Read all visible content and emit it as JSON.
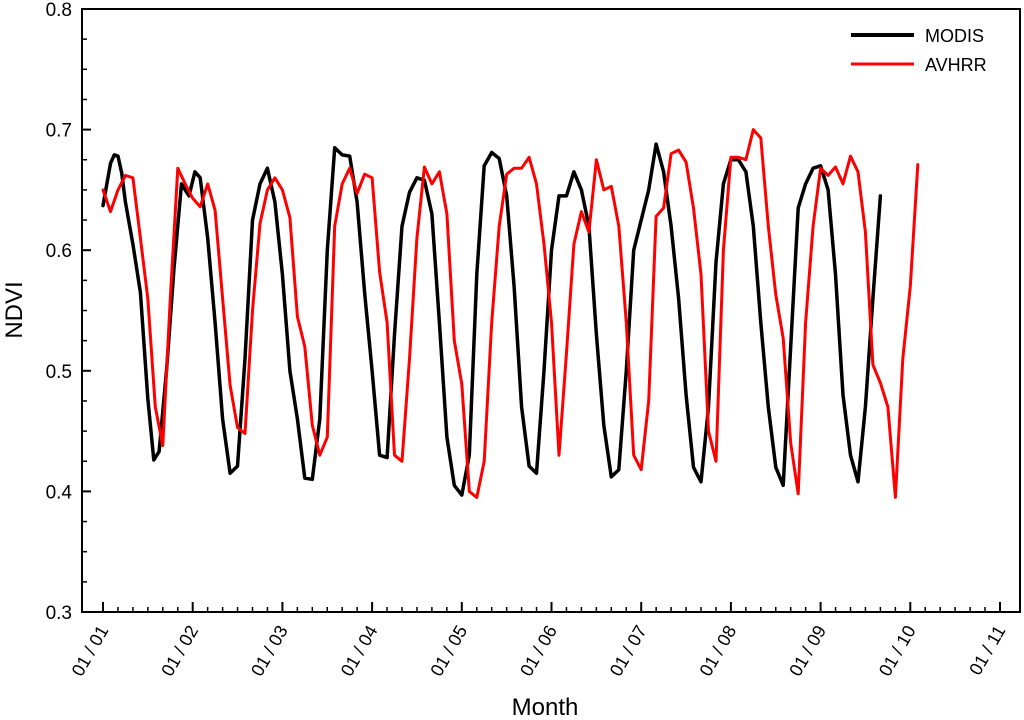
{
  "chart_data": {
    "type": "line",
    "xlabel": "Month",
    "ylabel": "NDVI",
    "ylim": [
      0.3,
      0.8
    ],
    "xlim": [
      0,
      120
    ],
    "y_ticks": [
      "0.3",
      "0.4",
      "0.5",
      "0.6",
      "0.7",
      "0.8"
    ],
    "x_ticks": [
      "01 / 01",
      "01 / 02",
      "01 / 03",
      "01 / 04",
      "01 / 05",
      "01 / 06",
      "01 / 07",
      "01 / 08",
      "01 / 09",
      "01 / 10",
      "01 / 11"
    ],
    "legend_position": "top-right",
    "grid": false,
    "series": [
      {
        "name": "MODIS",
        "color": "#000000",
        "points": [
          [
            0,
            0.637
          ],
          [
            1,
            0.672
          ],
          [
            1.5,
            0.679
          ],
          [
            2,
            0.678
          ],
          [
            2.5,
            0.664
          ],
          [
            3,
            0.64
          ],
          [
            4,
            0.605
          ],
          [
            5,
            0.565
          ],
          [
            6,
            0.477
          ],
          [
            6.8,
            0.426
          ],
          [
            7.5,
            0.433
          ],
          [
            8.5,
            0.5
          ],
          [
            9.5,
            0.585
          ],
          [
            10.5,
            0.655
          ],
          [
            11,
            0.65
          ],
          [
            11.5,
            0.645
          ],
          [
            12.3,
            0.665
          ],
          [
            13,
            0.66
          ],
          [
            14,
            0.61
          ],
          [
            15,
            0.54
          ],
          [
            16,
            0.46
          ],
          [
            17,
            0.415
          ],
          [
            18,
            0.421
          ],
          [
            19,
            0.51
          ],
          [
            20,
            0.625
          ],
          [
            21,
            0.655
          ],
          [
            22,
            0.668
          ],
          [
            23,
            0.64
          ],
          [
            24,
            0.58
          ],
          [
            25,
            0.5
          ],
          [
            26,
            0.46
          ],
          [
            27,
            0.411
          ],
          [
            28,
            0.41
          ],
          [
            29,
            0.46
          ],
          [
            30,
            0.6
          ],
          [
            31,
            0.685
          ],
          [
            32,
            0.679
          ],
          [
            33,
            0.678
          ],
          [
            34,
            0.64
          ],
          [
            35,
            0.565
          ],
          [
            36,
            0.5
          ],
          [
            37,
            0.43
          ],
          [
            38,
            0.428
          ],
          [
            39,
            0.53
          ],
          [
            40,
            0.62
          ],
          [
            41,
            0.648
          ],
          [
            42,
            0.66
          ],
          [
            43,
            0.658
          ],
          [
            44,
            0.63
          ],
          [
            45,
            0.54
          ],
          [
            46,
            0.445
          ],
          [
            47,
            0.405
          ],
          [
            48,
            0.397
          ],
          [
            49,
            0.43
          ],
          [
            50,
            0.58
          ],
          [
            51,
            0.67
          ],
          [
            52,
            0.681
          ],
          [
            53,
            0.676
          ],
          [
            54,
            0.645
          ],
          [
            55,
            0.57
          ],
          [
            56,
            0.47
          ],
          [
            57,
            0.421
          ],
          [
            58,
            0.415
          ],
          [
            59,
            0.5
          ],
          [
            60,
            0.6
          ],
          [
            61,
            0.645
          ],
          [
            62,
            0.645
          ],
          [
            63,
            0.665
          ],
          [
            64,
            0.65
          ],
          [
            65,
            0.62
          ],
          [
            66,
            0.53
          ],
          [
            67,
            0.455
          ],
          [
            68,
            0.412
          ],
          [
            69,
            0.418
          ],
          [
            70,
            0.5
          ],
          [
            71,
            0.6
          ],
          [
            72,
            0.625
          ],
          [
            73,
            0.65
          ],
          [
            74,
            0.688
          ],
          [
            75,
            0.665
          ],
          [
            76,
            0.62
          ],
          [
            77,
            0.56
          ],
          [
            78,
            0.48
          ],
          [
            79,
            0.42
          ],
          [
            80,
            0.408
          ],
          [
            81,
            0.47
          ],
          [
            82,
            0.59
          ],
          [
            83,
            0.655
          ],
          [
            84,
            0.675
          ],
          [
            85,
            0.675
          ],
          [
            86,
            0.665
          ],
          [
            87,
            0.62
          ],
          [
            88,
            0.54
          ],
          [
            89,
            0.47
          ],
          [
            90,
            0.42
          ],
          [
            91,
            0.405
          ],
          [
            92,
            0.52
          ],
          [
            93,
            0.635
          ],
          [
            94,
            0.655
          ],
          [
            95,
            0.668
          ],
          [
            96,
            0.67
          ],
          [
            97,
            0.65
          ],
          [
            98,
            0.58
          ],
          [
            99,
            0.48
          ],
          [
            100,
            0.43
          ],
          [
            101,
            0.408
          ],
          [
            102,
            0.47
          ],
          [
            103,
            0.56
          ],
          [
            104,
            0.645
          ]
        ]
      },
      {
        "name": "AVHRR",
        "color": "#ff0000",
        "points": [
          [
            0,
            0.65
          ],
          [
            1,
            0.632
          ],
          [
            2,
            0.65
          ],
          [
            3,
            0.662
          ],
          [
            4,
            0.66
          ],
          [
            5,
            0.61
          ],
          [
            6,
            0.56
          ],
          [
            7,
            0.47
          ],
          [
            8,
            0.438
          ],
          [
            9,
            0.56
          ],
          [
            10,
            0.668
          ],
          [
            11,
            0.655
          ],
          [
            12,
            0.643
          ],
          [
            13,
            0.636
          ],
          [
            14,
            0.655
          ],
          [
            15,
            0.633
          ],
          [
            16,
            0.56
          ],
          [
            17,
            0.488
          ],
          [
            18,
            0.453
          ],
          [
            19,
            0.448
          ],
          [
            20,
            0.55
          ],
          [
            21,
            0.622
          ],
          [
            22,
            0.65
          ],
          [
            23,
            0.66
          ],
          [
            24,
            0.65
          ],
          [
            25,
            0.627
          ],
          [
            26,
            0.545
          ],
          [
            27,
            0.52
          ],
          [
            28,
            0.455
          ],
          [
            29,
            0.43
          ],
          [
            30,
            0.445
          ],
          [
            31,
            0.62
          ],
          [
            32,
            0.655
          ],
          [
            33,
            0.668
          ],
          [
            34,
            0.647
          ],
          [
            35,
            0.663
          ],
          [
            36,
            0.66
          ],
          [
            37,
            0.582
          ],
          [
            38,
            0.54
          ],
          [
            39,
            0.43
          ],
          [
            40,
            0.425
          ],
          [
            41,
            0.51
          ],
          [
            42,
            0.61
          ],
          [
            43,
            0.669
          ],
          [
            44,
            0.655
          ],
          [
            45,
            0.665
          ],
          [
            46,
            0.63
          ],
          [
            47,
            0.525
          ],
          [
            48,
            0.489
          ],
          [
            49,
            0.4
          ],
          [
            50,
            0.395
          ],
          [
            51,
            0.425
          ],
          [
            52,
            0.54
          ],
          [
            53,
            0.62
          ],
          [
            54,
            0.663
          ],
          [
            55,
            0.668
          ],
          [
            56,
            0.668
          ],
          [
            57,
            0.677
          ],
          [
            58,
            0.655
          ],
          [
            59,
            0.605
          ],
          [
            60,
            0.54
          ],
          [
            61,
            0.43
          ],
          [
            62,
            0.515
          ],
          [
            63,
            0.605
          ],
          [
            64,
            0.632
          ],
          [
            65,
            0.615
          ],
          [
            66,
            0.675
          ],
          [
            67,
            0.65
          ],
          [
            68,
            0.653
          ],
          [
            69,
            0.62
          ],
          [
            70,
            0.54
          ],
          [
            71,
            0.43
          ],
          [
            72,
            0.418
          ],
          [
            73,
            0.475
          ],
          [
            74,
            0.628
          ],
          [
            75,
            0.635
          ],
          [
            76,
            0.68
          ],
          [
            77,
            0.683
          ],
          [
            78,
            0.673
          ],
          [
            79,
            0.635
          ],
          [
            80,
            0.58
          ],
          [
            81,
            0.45
          ],
          [
            82,
            0.425
          ],
          [
            83,
            0.6
          ],
          [
            84,
            0.677
          ],
          [
            85,
            0.677
          ],
          [
            86,
            0.675
          ],
          [
            87,
            0.7
          ],
          [
            88,
            0.693
          ],
          [
            89,
            0.62
          ],
          [
            90,
            0.563
          ],
          [
            91,
            0.527
          ],
          [
            92,
            0.44
          ],
          [
            93,
            0.398
          ],
          [
            94,
            0.54
          ],
          [
            95,
            0.62
          ],
          [
            96,
            0.668
          ],
          [
            97,
            0.662
          ],
          [
            98,
            0.669
          ],
          [
            99,
            0.655
          ],
          [
            100,
            0.678
          ],
          [
            101,
            0.665
          ],
          [
            102,
            0.615
          ],
          [
            103,
            0.505
          ],
          [
            104,
            0.49
          ],
          [
            105,
            0.47
          ],
          [
            106,
            0.395
          ],
          [
            107,
            0.51
          ],
          [
            108,
            0.57
          ],
          [
            109,
            0.671
          ]
        ]
      }
    ]
  }
}
